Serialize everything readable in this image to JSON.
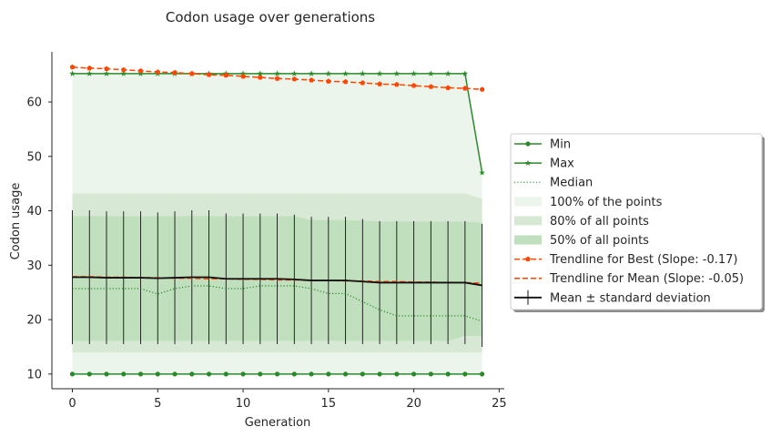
{
  "chart_data": {
    "type": "line",
    "title": "Codon usage over generations",
    "xlabel": "Generation",
    "ylabel": "Codon usage",
    "xlim": [
      -1.2,
      25.3
    ],
    "ylim": [
      7.3,
      69.2
    ],
    "xticks": [
      0,
      5,
      10,
      15,
      20,
      25
    ],
    "yticks": [
      10,
      20,
      30,
      40,
      50,
      60
    ],
    "grid": false,
    "legend_position": "right",
    "x": [
      0,
      1,
      2,
      3,
      4,
      5,
      6,
      7,
      8,
      9,
      10,
      11,
      12,
      13,
      14,
      15,
      16,
      17,
      18,
      19,
      20,
      21,
      22,
      23,
      24
    ],
    "bands": [
      {
        "name": "100% of the points",
        "color": "#ecf5ec",
        "lower": [
          10,
          10,
          10,
          10,
          10,
          10,
          10,
          10,
          10,
          10,
          10,
          10,
          10,
          10,
          10,
          10,
          10,
          10,
          10,
          10,
          10,
          10,
          10,
          10,
          10
        ],
        "upper": [
          65.2,
          65.2,
          65.2,
          65.2,
          65.2,
          65.2,
          65.2,
          65.2,
          65.2,
          65.2,
          65.2,
          65.2,
          65.2,
          65.2,
          65.2,
          65.2,
          65.2,
          65.2,
          65.2,
          65.2,
          65.2,
          65.2,
          65.2,
          65.2,
          47.0
        ]
      },
      {
        "name": "80% of all points",
        "color": "#d7e9d5",
        "lower": [
          14,
          14,
          14,
          14,
          14,
          14,
          14,
          14,
          14,
          14,
          14,
          14,
          14,
          14,
          14,
          14,
          14,
          14,
          14,
          14,
          14,
          14,
          14,
          14,
          14
        ],
        "upper": [
          43.2,
          43.2,
          43.2,
          43.2,
          43.2,
          43.2,
          43.2,
          43.2,
          43.2,
          43.2,
          43.2,
          43.2,
          43.2,
          43.2,
          43.2,
          43.2,
          43.2,
          43.2,
          43.2,
          43.2,
          43.2,
          43.2,
          43.2,
          43.2,
          42.2
        ]
      },
      {
        "name": "50% of all points",
        "color": "#bfdfbd",
        "lower": [
          16.1,
          16.1,
          16.1,
          16.1,
          16.1,
          16.1,
          16.1,
          16.1,
          16.1,
          16.1,
          16.1,
          16.1,
          16.1,
          16.1,
          16.1,
          16.1,
          16.1,
          16.1,
          16.1,
          16.1,
          16.1,
          16.1,
          16.1,
          17.0,
          17.0
        ],
        "upper": [
          39.0,
          39.0,
          39.0,
          39.0,
          39.0,
          39.0,
          39.0,
          39.0,
          39.0,
          39.0,
          39.0,
          39.0,
          39.0,
          39.0,
          38.3,
          38.3,
          38.3,
          38.2,
          38.0,
          38.0,
          38.0,
          38.0,
          38.0,
          38.0,
          37.8
        ]
      }
    ],
    "series": [
      {
        "name": "Min",
        "color": "#2a8a2a",
        "marker": "circle",
        "values": [
          10,
          10,
          10,
          10,
          10,
          10,
          10,
          10,
          10,
          10,
          10,
          10,
          10,
          10,
          10,
          10,
          10,
          10,
          10,
          10,
          10,
          10,
          10,
          10,
          10
        ]
      },
      {
        "name": "Max",
        "color": "#2a8a2a",
        "marker": "star",
        "values": [
          65.2,
          65.2,
          65.2,
          65.2,
          65.2,
          65.2,
          65.2,
          65.2,
          65.2,
          65.2,
          65.2,
          65.2,
          65.2,
          65.2,
          65.2,
          65.2,
          65.2,
          65.2,
          65.2,
          65.2,
          65.2,
          65.2,
          65.2,
          65.2,
          47.0
        ]
      },
      {
        "name": "Median",
        "color": "#2a8a2a",
        "dash": "dotted",
        "values": [
          25.7,
          25.7,
          25.7,
          25.7,
          25.7,
          24.7,
          25.7,
          26.2,
          26.2,
          25.7,
          25.7,
          26.2,
          26.2,
          26.2,
          25.7,
          24.8,
          24.8,
          23.3,
          21.8,
          20.7,
          20.7,
          20.7,
          20.7,
          20.7,
          19.7
        ]
      },
      {
        "name": "Trendline for Best (Slope: -0.17)",
        "color": "#ff4500",
        "marker": "pentagon",
        "dash": "dashed",
        "values": [
          66.4,
          66.2,
          66.1,
          65.9,
          65.7,
          65.5,
          65.4,
          65.2,
          65.0,
          64.9,
          64.7,
          64.5,
          64.3,
          64.2,
          64.0,
          63.8,
          63.7,
          63.5,
          63.3,
          63.2,
          63.0,
          62.8,
          62.6,
          62.5,
          62.3
        ]
      },
      {
        "name": "Trendline for Mean (Slope: -0.05)",
        "color": "#ff4500",
        "dash": "dashed",
        "values": [
          27.9,
          27.9,
          27.8,
          27.8,
          27.7,
          27.7,
          27.6,
          27.6,
          27.5,
          27.5,
          27.4,
          27.4,
          27.3,
          27.3,
          27.2,
          27.2,
          27.1,
          27.1,
          27.0,
          27.0,
          26.9,
          26.9,
          26.8,
          26.8,
          26.7
        ]
      },
      {
        "name": "Mean ± standard deviation",
        "color": "#111111",
        "values": [
          27.8,
          27.8,
          27.7,
          27.7,
          27.7,
          27.6,
          27.7,
          27.8,
          27.8,
          27.5,
          27.5,
          27.5,
          27.5,
          27.4,
          27.2,
          27.2,
          27.2,
          27.0,
          26.8,
          26.8,
          26.8,
          26.8,
          26.8,
          26.8,
          26.3
        ],
        "error": [
          12.3,
          12.3,
          12.2,
          12.2,
          12.2,
          12.1,
          12.2,
          12.3,
          12.3,
          12.0,
          12.0,
          12.0,
          12.0,
          11.9,
          11.7,
          11.7,
          11.7,
          11.5,
          11.3,
          11.3,
          11.3,
          11.3,
          11.3,
          11.3,
          11.3
        ]
      }
    ]
  }
}
